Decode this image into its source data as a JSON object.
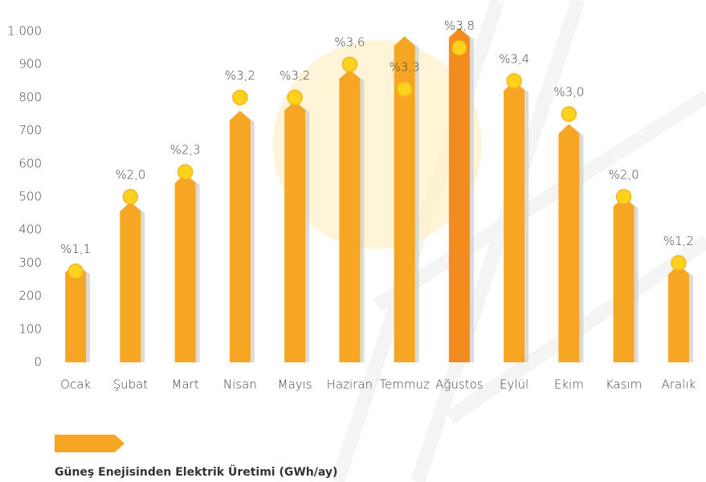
{
  "chart_data": {
    "type": "bar",
    "categories": [
      "Ocak",
      "Şubat",
      "Mart",
      "Nisan",
      "Mayıs",
      "Haziran",
      "Temmuz",
      "Ağustos",
      "Eylül",
      "Ekim",
      "Kasım",
      "Aralık"
    ],
    "series": [
      {
        "name": "Güneş Enejisinden Elektrik Üretimi (GWh/ay)",
        "color": "#f6a623",
        "colors": [
          "#f6a623",
          "#f6a623",
          "#f6a623",
          "#f6a623",
          "#f6a623",
          "#f6a623",
          "#f6a623",
          "#f28c1e",
          "#f6a623",
          "#f6a623",
          "#f6a623",
          "#f6a623"
        ],
        "values": [
          300,
          485,
          570,
          760,
          790,
          885,
          985,
          1010,
          850,
          720,
          500,
          295
        ]
      }
    ],
    "markers": {
      "axis": "y2",
      "color": "#fcd21c",
      "values": [
        1.1,
        2.0,
        2.3,
        3.2,
        3.2,
        3.6,
        3.3,
        3.8,
        3.4,
        3.0,
        2.0,
        1.2
      ],
      "value_labels": [
        "%1,1",
        "%2,0",
        "%2,3",
        "%3,2",
        "%3,2",
        "%3,6",
        "%3,3",
        "%3,8",
        "%3,4",
        "%3,0",
        "%2,0",
        "%1,2"
      ]
    },
    "ylim": [
      0,
      1000
    ],
    "yticks": [
      0,
      100,
      200,
      300,
      400,
      500,
      600,
      700,
      800,
      900,
      {
        "value": 1000,
        "label": "1.000"
      }
    ],
    "y2lim": [
      0,
      4
    ],
    "legend": "bottom-left"
  }
}
